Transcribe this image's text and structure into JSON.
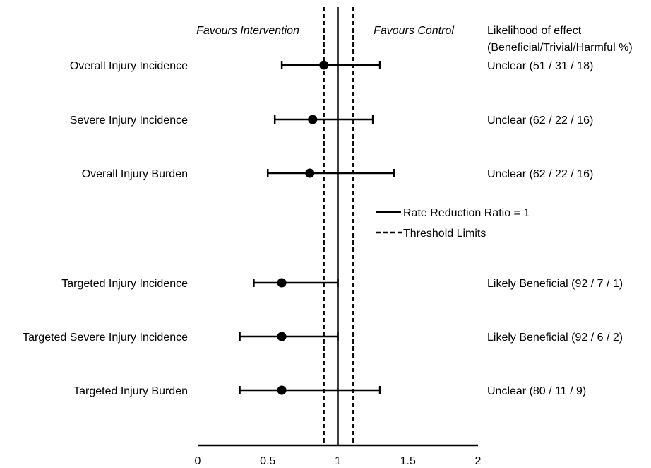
{
  "chart_data": {
    "type": "forest",
    "header_left": "Favours Intervention",
    "header_right": "Favours Control",
    "likelihood_header": [
      "Likelihood of effect",
      "(Beneficial/Trivial/Harmful %)"
    ],
    "xlim": [
      0,
      2
    ],
    "xticks": [
      0,
      0.5,
      1,
      1.5,
      2
    ],
    "xtick_labels": [
      "0",
      "0.5",
      "1",
      "1.5",
      "2"
    ],
    "reference_line": {
      "value": 1,
      "label": "Rate Reduction Ratio = 1"
    },
    "threshold_lines": {
      "values": [
        0.9,
        1.11
      ],
      "label": "Threshold Limits"
    },
    "rows": [
      {
        "label": "Overall Injury Incidence",
        "estimate": 0.9,
        "lower": 0.6,
        "upper": 1.3,
        "likelihood": "Unclear (51 / 31 / 18)"
      },
      {
        "label": "Severe Injury Incidence",
        "estimate": 0.82,
        "lower": 0.55,
        "upper": 1.25,
        "likelihood": "Unclear (62 / 22 / 16)"
      },
      {
        "label": "Overall Injury Burden",
        "estimate": 0.8,
        "lower": 0.5,
        "upper": 1.4,
        "likelihood": "Unclear (62 / 22 / 16)"
      },
      {
        "label": "Targeted Injury Incidence",
        "estimate": 0.6,
        "lower": 0.4,
        "upper": 1.0,
        "likelihood": "Likely Beneficial (92 / 7 / 1)"
      },
      {
        "label": "Targeted Severe Injury Incidence",
        "estimate": 0.6,
        "lower": 0.3,
        "upper": 1.0,
        "likelihood": "Likely Beneficial (92 / 6 / 2)"
      },
      {
        "label": "Targeted Injury Burden",
        "estimate": 0.6,
        "lower": 0.3,
        "upper": 1.3,
        "likelihood": "Unclear (80 / 11 / 9)"
      }
    ]
  }
}
